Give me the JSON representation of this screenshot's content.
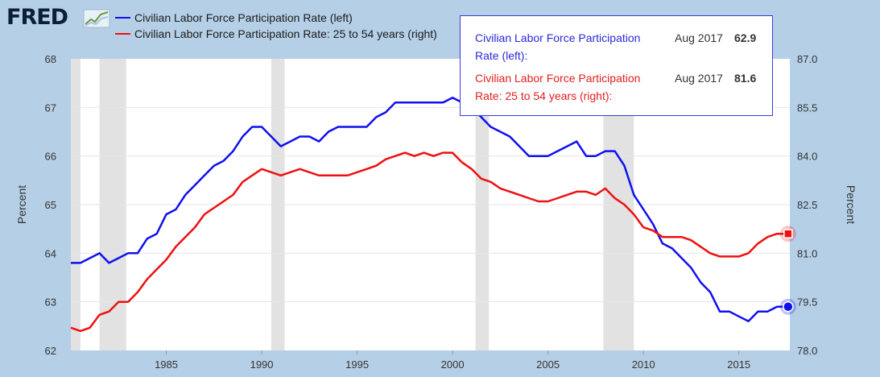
{
  "header": {
    "logo_text": "FRED",
    "logo_icon": "line-graph-icon"
  },
  "tooltip": {
    "rows": [
      {
        "label": "Civilian Labor Force Participation Rate (left):",
        "date": "Aug 2017",
        "value": "62.9",
        "color": "#2a2ad8"
      },
      {
        "label": "Civilian Labor Force Participation Rate: 25 to 54 years (right):",
        "date": "Aug 2017",
        "value": "81.6",
        "color": "#e02020"
      }
    ]
  },
  "colors": {
    "series_left": "#1010ee",
    "series_right": "#ee1010",
    "recession": "#e2e2e2",
    "background": "#b5cfe6"
  },
  "chart_data": {
    "type": "line",
    "xlabel": "",
    "ylabel": "Percent",
    "ylabel_right": "Percent",
    "xlim": [
      1980.0,
      2017.67
    ],
    "ylim": [
      62,
      68
    ],
    "ylim_right": [
      78.0,
      87.0
    ],
    "x_ticks": [
      "1985",
      "1990",
      "1995",
      "2000",
      "2005",
      "2010",
      "2015"
    ],
    "y_ticks": [
      "62",
      "63",
      "64",
      "65",
      "66",
      "67",
      "68"
    ],
    "y_ticks_right": [
      "78.0",
      "79.5",
      "81.0",
      "82.5",
      "84.0",
      "85.5",
      "87.0"
    ],
    "grid": "horizontal",
    "recessions": [
      [
        1980.0,
        1980.5
      ],
      [
        1981.5,
        1982.9
      ],
      [
        1990.5,
        1991.2
      ],
      [
        2001.2,
        2001.9
      ],
      [
        2007.9,
        2009.5
      ]
    ],
    "series": [
      {
        "name": "Civilian Labor Force Participation Rate (left)",
        "axis": "left",
        "x": [
          1980.0,
          1980.5,
          1981.0,
          1981.5,
          1982.0,
          1982.5,
          1983.0,
          1983.5,
          1984.0,
          1984.5,
          1985.0,
          1985.5,
          1986.0,
          1986.5,
          1987.0,
          1987.5,
          1988.0,
          1988.5,
          1989.0,
          1989.5,
          1990.0,
          1990.5,
          1991.0,
          1991.5,
          1992.0,
          1992.5,
          1993.0,
          1993.5,
          1994.0,
          1994.5,
          1995.0,
          1995.5,
          1996.0,
          1996.5,
          1997.0,
          1997.5,
          1998.0,
          1998.5,
          1999.0,
          1999.5,
          2000.0,
          2000.5,
          2001.0,
          2001.5,
          2002.0,
          2002.5,
          2003.0,
          2003.5,
          2004.0,
          2004.5,
          2005.0,
          2005.5,
          2006.0,
          2006.5,
          2007.0,
          2007.5,
          2008.0,
          2008.5,
          2009.0,
          2009.5,
          2010.0,
          2010.5,
          2011.0,
          2011.5,
          2012.0,
          2012.5,
          2013.0,
          2013.5,
          2014.0,
          2014.5,
          2015.0,
          2015.5,
          2016.0,
          2016.5,
          2017.0,
          2017.58
        ],
        "values": [
          63.8,
          63.8,
          63.9,
          64.0,
          63.8,
          63.9,
          64.0,
          64.0,
          64.3,
          64.4,
          64.8,
          64.9,
          65.2,
          65.4,
          65.6,
          65.8,
          65.9,
          66.1,
          66.4,
          66.6,
          66.6,
          66.4,
          66.2,
          66.3,
          66.4,
          66.4,
          66.3,
          66.5,
          66.6,
          66.6,
          66.6,
          66.6,
          66.8,
          66.9,
          67.1,
          67.1,
          67.1,
          67.1,
          67.1,
          67.1,
          67.2,
          67.1,
          67.0,
          66.8,
          66.6,
          66.5,
          66.4,
          66.2,
          66.0,
          66.0,
          66.0,
          66.1,
          66.2,
          66.3,
          66.0,
          66.0,
          66.1,
          66.1,
          65.8,
          65.2,
          64.9,
          64.6,
          64.2,
          64.1,
          63.9,
          63.7,
          63.4,
          63.2,
          62.8,
          62.8,
          62.7,
          62.6,
          62.8,
          62.8,
          62.9,
          62.9
        ]
      },
      {
        "name": "Civilian Labor Force Participation Rate: 25 to 54 years (right)",
        "axis": "right",
        "x": [
          1980.0,
          1980.5,
          1981.0,
          1981.5,
          1982.0,
          1982.5,
          1983.0,
          1983.5,
          1984.0,
          1984.5,
          1985.0,
          1985.5,
          1986.0,
          1986.5,
          1987.0,
          1987.5,
          1988.0,
          1988.5,
          1989.0,
          1989.5,
          1990.0,
          1990.5,
          1991.0,
          1991.5,
          1992.0,
          1992.5,
          1993.0,
          1993.5,
          1994.0,
          1994.5,
          1995.0,
          1995.5,
          1996.0,
          1996.5,
          1997.0,
          1997.5,
          1998.0,
          1998.5,
          1999.0,
          1999.5,
          2000.0,
          2000.5,
          2001.0,
          2001.5,
          2002.0,
          2002.5,
          2003.0,
          2003.5,
          2004.0,
          2004.5,
          2005.0,
          2005.5,
          2006.0,
          2006.5,
          2007.0,
          2007.5,
          2008.0,
          2008.5,
          2009.0,
          2009.5,
          2010.0,
          2010.5,
          2011.0,
          2011.5,
          2012.0,
          2012.5,
          2013.0,
          2013.5,
          2014.0,
          2014.5,
          2015.0,
          2015.5,
          2016.0,
          2016.5,
          2017.0,
          2017.58
        ],
        "values": [
          78.7,
          78.6,
          78.7,
          79.1,
          79.2,
          79.5,
          79.5,
          79.8,
          80.2,
          80.5,
          80.8,
          81.2,
          81.5,
          81.8,
          82.2,
          82.4,
          82.6,
          82.8,
          83.2,
          83.4,
          83.6,
          83.5,
          83.4,
          83.5,
          83.6,
          83.5,
          83.4,
          83.4,
          83.4,
          83.4,
          83.5,
          83.6,
          83.7,
          83.9,
          84.0,
          84.1,
          84.0,
          84.1,
          84.0,
          84.1,
          84.1,
          83.8,
          83.6,
          83.3,
          83.2,
          83.0,
          82.9,
          82.8,
          82.7,
          82.6,
          82.6,
          82.7,
          82.8,
          82.9,
          82.9,
          82.8,
          83.0,
          82.7,
          82.5,
          82.2,
          81.8,
          81.7,
          81.5,
          81.5,
          81.5,
          81.4,
          81.2,
          81.0,
          80.9,
          80.9,
          80.9,
          81.0,
          81.3,
          81.5,
          81.6,
          81.6
        ]
      }
    ]
  }
}
